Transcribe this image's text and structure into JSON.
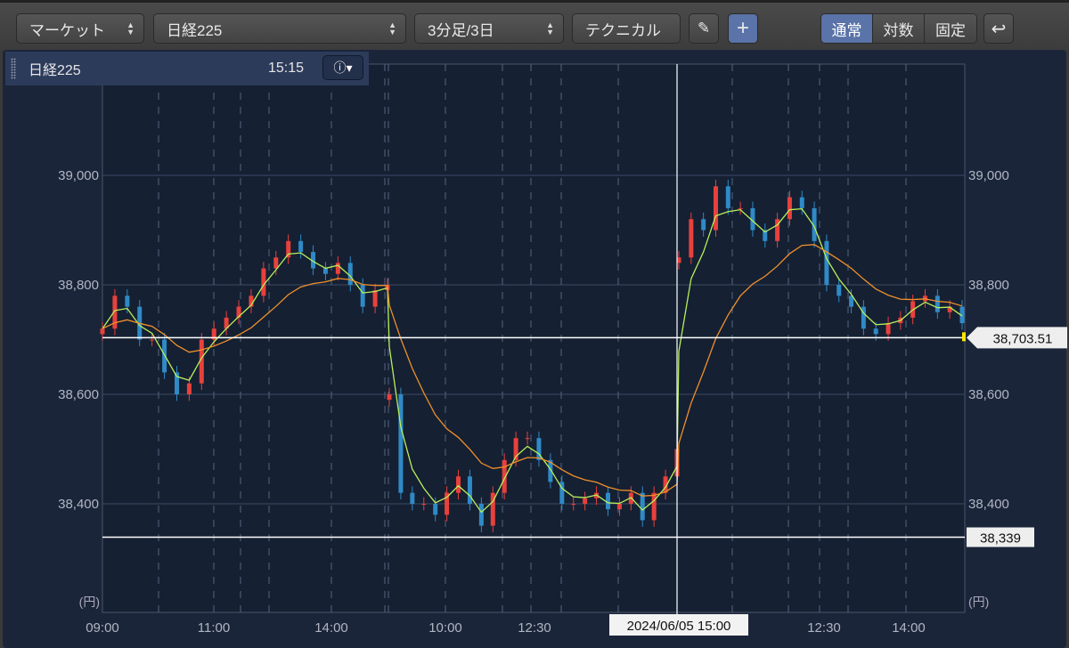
{
  "toolbar": {
    "market_select": "マーケット",
    "symbol_select": "日経225",
    "period_select": "3分足/3日",
    "technical_button": "テクニカル",
    "scale_modes": [
      {
        "label": "通常",
        "active": true
      },
      {
        "label": "対数",
        "active": false
      },
      {
        "label": "固定",
        "active": false
      }
    ]
  },
  "info_panel": {
    "symbol": "日経225",
    "time": "15:15"
  },
  "chart_data": {
    "type": "candlestick",
    "unit_label": "(円)",
    "ylim": [
      38200,
      39200
    ],
    "y_ticks": [
      39000,
      38800,
      38600,
      38400
    ],
    "y_tick_labels": [
      "39,000",
      "38,800",
      "38,600",
      "38,400"
    ],
    "x_tick_labels": [
      "09:00",
      "11:00",
      "14:00",
      "10:00",
      "12:30",
      "12:30",
      "14:00"
    ],
    "grid": true,
    "days": [
      {
        "close": [
          38720,
          38780,
          38760,
          38700,
          38700,
          38640,
          38600,
          38620,
          38700,
          38720,
          38740,
          38760,
          38780,
          38830,
          38850,
          38880,
          38860,
          38830,
          38820,
          38840,
          38800,
          38760,
          38790,
          38800
        ]
      },
      {
        "close": [
          38600,
          38420,
          38400,
          38400,
          38380,
          38420,
          38450,
          38400,
          38360,
          38420,
          38480,
          38520,
          38520,
          38480,
          38440,
          38400,
          38400,
          38410,
          38420,
          38390,
          38400,
          38420,
          38370,
          38420,
          38450,
          38500
        ]
      },
      {
        "close": [
          38850,
          38920,
          38900,
          38980,
          38940,
          38940,
          38900,
          38880,
          38920,
          38960,
          38940,
          38880,
          38800,
          38780,
          38760,
          38720,
          38710,
          38730,
          38740,
          38770,
          38780,
          38750,
          38760,
          38730
        ]
      }
    ],
    "series_colors": {
      "up": "#e8413c",
      "down": "#2f8ac6",
      "ma_short": "#b8f05a",
      "ma_long": "#f0902a"
    },
    "crosshair": {
      "price_label": "38,703.51",
      "price": 38703.51,
      "time_label": "2024/06/05 15:00"
    },
    "low_line": {
      "label": "38,339",
      "price": 38339
    }
  }
}
